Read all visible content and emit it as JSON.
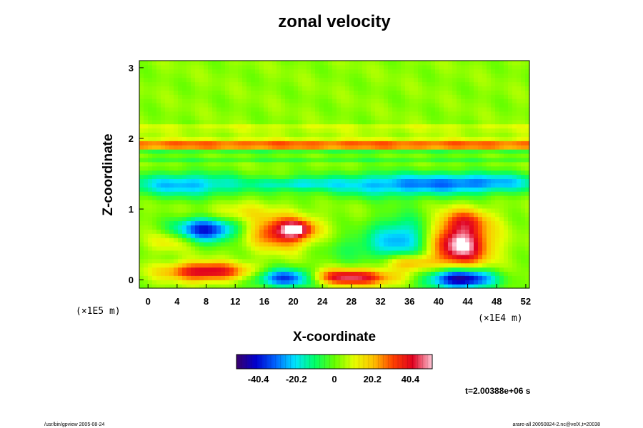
{
  "chart_data": {
    "type": "heatmap",
    "title": "zonal velocity",
    "xlabel": "X-coordinate",
    "ylabel": "Z-coordinate",
    "x_scale_note": "(×1E4 m)",
    "y_scale_note": "(×1E5 m)",
    "xlim": [
      -1.2,
      52.5
    ],
    "ylim": [
      -0.12,
      3.1
    ],
    "x_ticks": [
      0,
      4,
      8,
      12,
      16,
      20,
      24,
      28,
      32,
      36,
      40,
      44,
      48,
      52
    ],
    "y_ticks": [
      0,
      1,
      2,
      3
    ],
    "colorbar": {
      "vmin": -52,
      "vmax": 52,
      "ticks": [
        -40.4,
        -20.2,
        0,
        20.2,
        40.4
      ],
      "tick_labels": [
        "-40.4",
        "-20.2",
        "0",
        "20.2",
        "40.4"
      ],
      "colors": [
        "#3a006a",
        "#0000d0",
        "#0066ff",
        "#00e6ff",
        "#00ff66",
        "#66ff00",
        "#e6ff00",
        "#ffc000",
        "#ff4000",
        "#e00020",
        "#ffc8d8"
      ]
    },
    "background_value": 3,
    "features": [
      {
        "x": 26,
        "z": 1.91,
        "sx": 100,
        "sz": 0.035,
        "v": 34
      },
      {
        "x": 26,
        "z": 1.82,
        "sx": 100,
        "sz": 0.022,
        "v": -9
      },
      {
        "x": 26,
        "z": 2.02,
        "sx": 100,
        "sz": 0.025,
        "v": 8
      },
      {
        "x": 26,
        "z": 2.15,
        "sx": 100,
        "sz": 0.025,
        "v": 10
      },
      {
        "x": 26,
        "z": 1.72,
        "sx": 100,
        "sz": 0.02,
        "v": -13
      },
      {
        "x": 5,
        "z": 1.35,
        "sx": 6,
        "sz": 0.12,
        "v": -28
      },
      {
        "x": 20,
        "z": 1.36,
        "sx": 4,
        "sz": 0.06,
        "v": -16
      },
      {
        "x": 34,
        "z": 1.35,
        "sx": 8,
        "sz": 0.12,
        "v": -28
      },
      {
        "x": 47,
        "z": 1.38,
        "sx": 6,
        "sz": 0.1,
        "v": -24
      },
      {
        "x": 8,
        "z": 0.72,
        "sx": 3,
        "sz": 0.12,
        "v": -44
      },
      {
        "x": 18.5,
        "z": 0.68,
        "sx": 3,
        "sz": 0.16,
        "v": 38
      },
      {
        "x": 20.5,
        "z": 0.72,
        "sx": 1.5,
        "sz": 0.08,
        "v": 26
      },
      {
        "x": 35,
        "z": 0.6,
        "sx": 3,
        "sz": 0.22,
        "v": -26
      },
      {
        "x": 43,
        "z": 0.5,
        "sx": 2.8,
        "sz": 0.22,
        "v": 52
      },
      {
        "x": 43.5,
        "z": 0.85,
        "sx": 2.5,
        "sz": 0.12,
        "v": 20
      },
      {
        "x": 8,
        "z": 0.12,
        "sx": 4,
        "sz": 0.09,
        "v": 42
      },
      {
        "x": 19.5,
        "z": 0.03,
        "sx": 3.2,
        "sz": 0.09,
        "v": -52
      },
      {
        "x": 27,
        "z": 0.04,
        "sx": 5,
        "sz": 0.08,
        "v": 45
      },
      {
        "x": 43,
        "z": 0.02,
        "sx": 3.2,
        "sz": 0.1,
        "v": -55
      },
      {
        "x": 36,
        "z": 0.25,
        "sx": 2.5,
        "sz": 0.08,
        "v": 22
      },
      {
        "x": 29,
        "z": 0.45,
        "sx": 4,
        "sz": 0.15,
        "v": -10
      },
      {
        "x": 12,
        "z": 0.95,
        "sx": 3,
        "sz": 0.1,
        "v": 12
      },
      {
        "x": 3,
        "z": 0.55,
        "sx": 2,
        "sz": 0.1,
        "v": 12
      }
    ],
    "time_label": "t=2.00388e+06 s"
  },
  "footer": {
    "left": "/usr/bin/gpview 2005-08-24",
    "right": "arare-all 20050824-2.nc@velX,t=20038"
  }
}
